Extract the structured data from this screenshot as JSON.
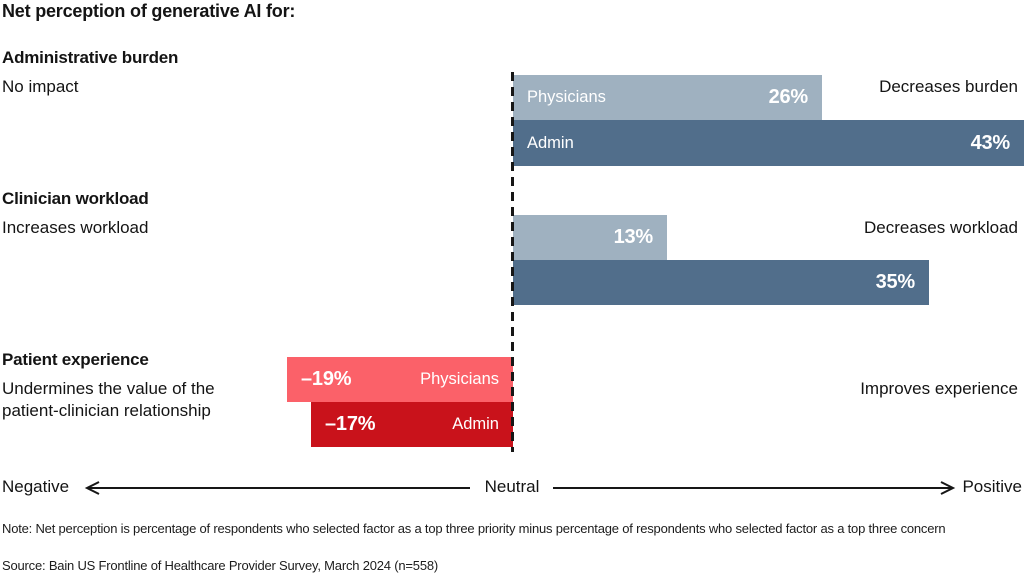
{
  "title": "Net perception of generative AI for:",
  "colors": {
    "physicians_bar": "#9fb1c0",
    "admin_bar": "#516e8b",
    "physicians_negative_bar": "#fb6169",
    "admin_negative_bar": "#c9121b",
    "text": "#141414",
    "bar_text": "#ffffff"
  },
  "chart_data": {
    "type": "bar",
    "orientation": "horizontal-diverging",
    "title": "Net perception of generative AI for:",
    "value_unit": "net percentage points",
    "zero_axis_label": "Neutral",
    "axis": {
      "negative_label": "Negative",
      "neutral_label": "Neutral",
      "positive_label": "Positive"
    },
    "groups": [
      {
        "name": "Administrative burden",
        "negative_side_label": "No impact",
        "positive_side_label": "Decreases burden",
        "series": [
          {
            "name": "Physicians",
            "value": 26,
            "label": "26%"
          },
          {
            "name": "Admin",
            "value": 43,
            "label": "43%"
          }
        ]
      },
      {
        "name": "Clinician workload",
        "negative_side_label": "Increases workload",
        "positive_side_label": "Decreases workload",
        "series": [
          {
            "name": "Physicians",
            "value": 13,
            "label": "13%"
          },
          {
            "name": "Admin",
            "value": 35,
            "label": "35%"
          }
        ]
      },
      {
        "name": "Patient experience",
        "negative_side_label": "Undermines the value of the patient-clinician relationship",
        "positive_side_label": "Improves experience",
        "series": [
          {
            "name": "Physicians",
            "value": -19,
            "label": "–19%"
          },
          {
            "name": "Admin",
            "value": -17,
            "label": "–17%"
          }
        ]
      }
    ]
  },
  "note": "Note: Net perception is percentage of respondents who selected factor as a top three priority minus percentage of respondents who selected factor as a top three concern",
  "source": "Source: Bain US Frontline of Healthcare Provider Survey, March 2024 (n=558)"
}
